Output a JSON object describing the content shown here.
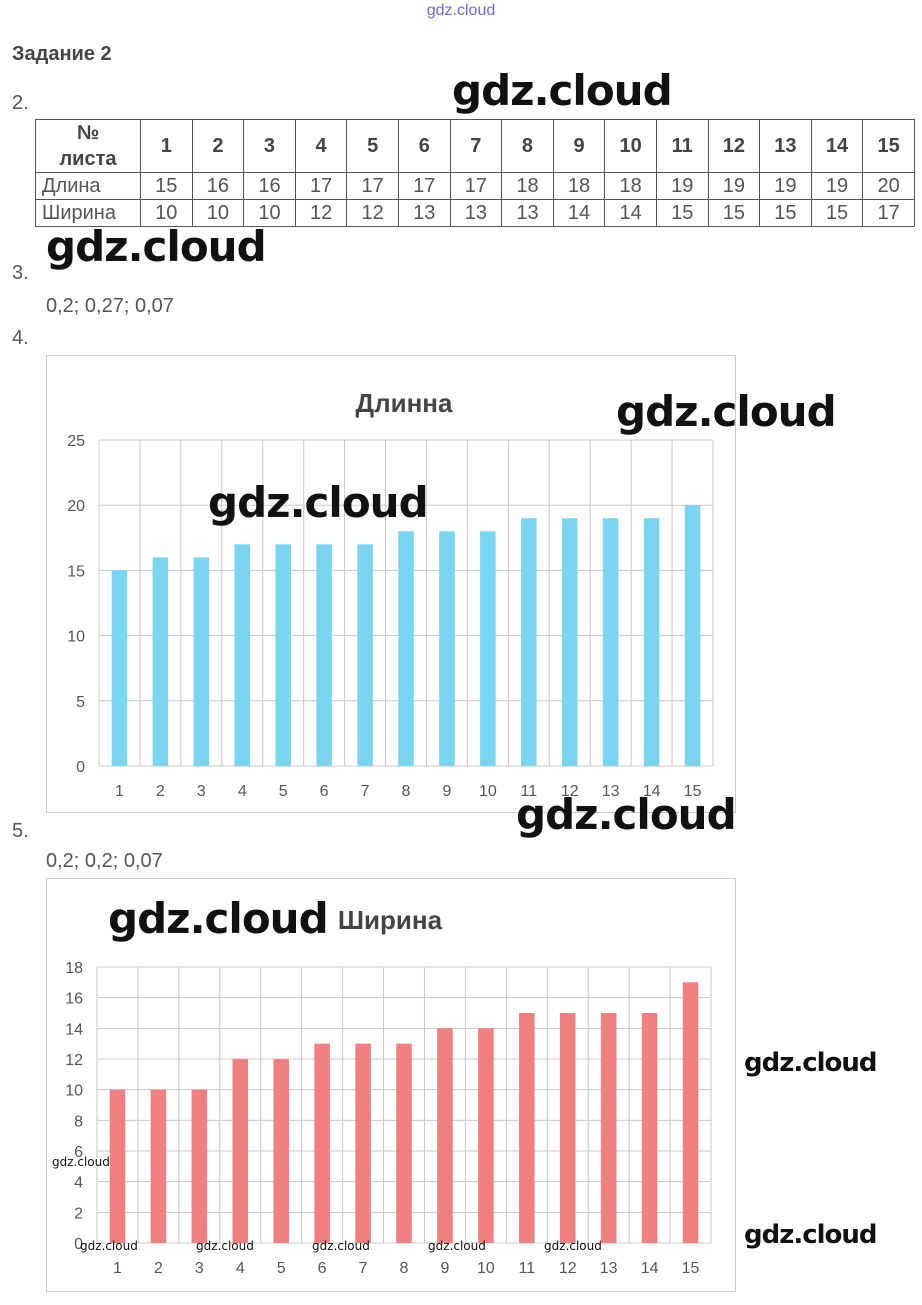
{
  "watermarks": {
    "top": "gdz.cloud",
    "main": "gdz.cloud",
    "small": "gdz.cloud"
  },
  "heading": "Задание 2",
  "items": {
    "n2": "2.",
    "n3": "3.",
    "n4": "4.",
    "n5": "5."
  },
  "table": {
    "header_label_line1": "№",
    "header_label_line2": "листа",
    "columns": [
      "1",
      "2",
      "3",
      "4",
      "5",
      "6",
      "7",
      "8",
      "9",
      "10",
      "11",
      "12",
      "13",
      "14",
      "15"
    ],
    "rows": [
      {
        "label": "Длина",
        "values": [
          "15",
          "16",
          "16",
          "17",
          "17",
          "17",
          "17",
          "18",
          "18",
          "18",
          "19",
          "19",
          "19",
          "19",
          "20"
        ]
      },
      {
        "label": "Ширина",
        "values": [
          "10",
          "10",
          "10",
          "12",
          "12",
          "13",
          "13",
          "13",
          "14",
          "14",
          "15",
          "15",
          "15",
          "15",
          "17"
        ]
      }
    ]
  },
  "answers": {
    "a3": "0,2; 0,27; 0,07",
    "a5": "0,2; 0,2; 0,07"
  },
  "colors": {
    "length_bar": "#7ad6f0",
    "width_bar": "#f08080",
    "grid": "#c8c8c8"
  },
  "chart_data": [
    {
      "type": "bar",
      "title": "Длинна",
      "categories": [
        "1",
        "2",
        "3",
        "4",
        "5",
        "6",
        "7",
        "8",
        "9",
        "10",
        "11",
        "12",
        "13",
        "14",
        "15"
      ],
      "values": [
        15,
        16,
        16,
        17,
        17,
        17,
        17,
        18,
        18,
        18,
        19,
        19,
        19,
        19,
        20
      ],
      "ylim": [
        0,
        25
      ],
      "yticks": [
        0,
        5,
        10,
        15,
        20,
        25
      ],
      "grid": true,
      "xlabel": "",
      "ylabel": ""
    },
    {
      "type": "bar",
      "title": "Ширина",
      "categories": [
        "1",
        "2",
        "3",
        "4",
        "5",
        "6",
        "7",
        "8",
        "9",
        "10",
        "11",
        "12",
        "13",
        "14",
        "15"
      ],
      "values": [
        10,
        10,
        10,
        12,
        12,
        13,
        13,
        13,
        14,
        14,
        15,
        15,
        15,
        15,
        17
      ],
      "ylim": [
        0,
        18
      ],
      "yticks": [
        0,
        2,
        4,
        6,
        8,
        10,
        12,
        14,
        16,
        18
      ],
      "grid": true,
      "xlabel": "",
      "ylabel": ""
    }
  ]
}
